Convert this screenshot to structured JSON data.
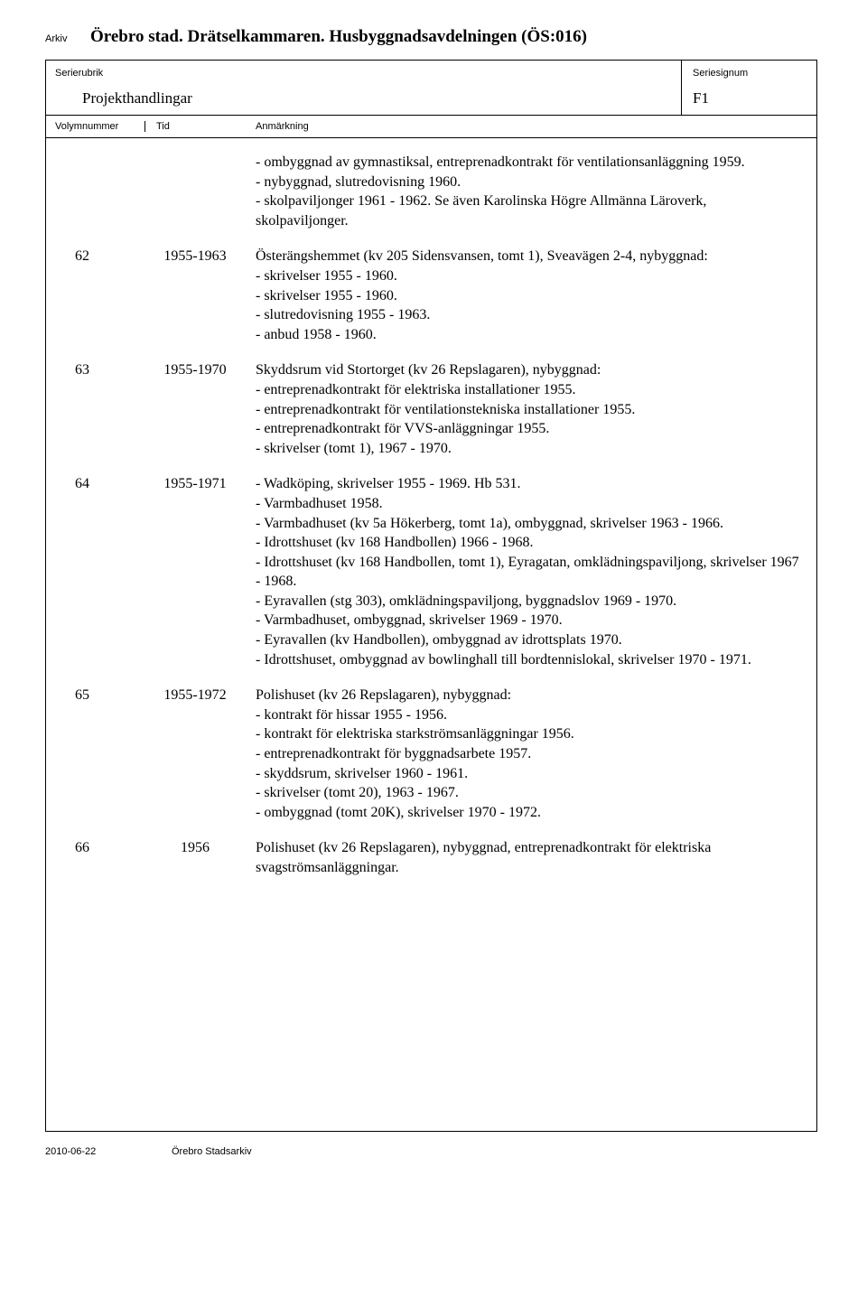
{
  "header": {
    "arkiv_label": "Arkiv",
    "archive_title": "Örebro stad. Drätselkammaren. Husbyggnadsavdelningen (ÖS:016)"
  },
  "meta": {
    "serierubrik_label": "Serierubrik",
    "series_title": "Projekthandlingar",
    "seriesignum_label": "Seriesignum",
    "signum": "F1"
  },
  "columns": {
    "vol": "Volymnummer",
    "tid": "Tid",
    "anm": "Anmärkning"
  },
  "entries": [
    {
      "vol": "",
      "tid": "",
      "anm": "- ombyggnad av gymnastiksal, entreprenadkontrakt för ventilationsanläggning 1959.\n- nybyggnad, slutredovisning 1960.\n- skolpaviljonger 1961 - 1962. Se även Karolinska Högre Allmänna Läroverk, skolpaviljonger."
    },
    {
      "vol": "62",
      "tid": "1955-1963",
      "anm": "Österängshemmet (kv 205 Sidensvansen, tomt 1), Sveavägen 2-4, nybyggnad:\n- skrivelser 1955 - 1960.\n- skrivelser 1955 - 1960.\n- slutredovisning 1955 - 1963.\n- anbud 1958 - 1960."
    },
    {
      "vol": "63",
      "tid": "1955-1970",
      "anm": "Skyddsrum vid Stortorget (kv 26 Repslagaren), nybyggnad:\n- entreprenadkontrakt för elektriska installationer 1955.\n- entreprenadkontrakt för ventilationstekniska installationer 1955.\n- entreprenadkontrakt för VVS-anläggningar 1955.\n- skrivelser (tomt 1), 1967 - 1970."
    },
    {
      "vol": "64",
      "tid": "1955-1971",
      "anm": "- Wadköping, skrivelser 1955 - 1969. Hb 531.\n- Varmbadhuset 1958.\n- Varmbadhuset (kv 5a Hökerberg, tomt 1a), ombyggnad, skrivelser 1963 - 1966.\n- Idrottshuset (kv 168 Handbollen) 1966 - 1968.\n- Idrottshuset (kv 168 Handbollen, tomt 1), Eyragatan, omklädningspaviljong, skrivelser 1967 - 1968.\n- Eyravallen (stg 303), omklädningspaviljong, byggnadslov 1969 - 1970.\n- Varmbadhuset, ombyggnad, skrivelser 1969 - 1970.\n- Eyravallen (kv Handbollen), ombyggnad av idrottsplats 1970.\n- Idrottshuset, ombyggnad av bowlinghall till bordtennislokal, skrivelser 1970 - 1971."
    },
    {
      "vol": "65",
      "tid": "1955-1972",
      "anm": "Polishuset (kv 26 Repslagaren), nybyggnad:\n- kontrakt för hissar 1955 - 1956.\n- kontrakt för elektriska starkströmsanläggningar 1956.\n- entreprenadkontrakt för byggnadsarbete 1957.\n- skyddsrum, skrivelser 1960 - 1961.\n- skrivelser (tomt 20), 1963 - 1967.\n- ombyggnad (tomt 20K), skrivelser 1970 - 1972."
    },
    {
      "vol": "66",
      "tid": "1956",
      "anm": "Polishuset (kv 26 Repslagaren), nybyggnad, entreprenadkontrakt för elektriska svagströmsanläggningar."
    }
  ],
  "footer": {
    "date": "2010-06-22",
    "org": "Örebro Stadsarkiv"
  }
}
